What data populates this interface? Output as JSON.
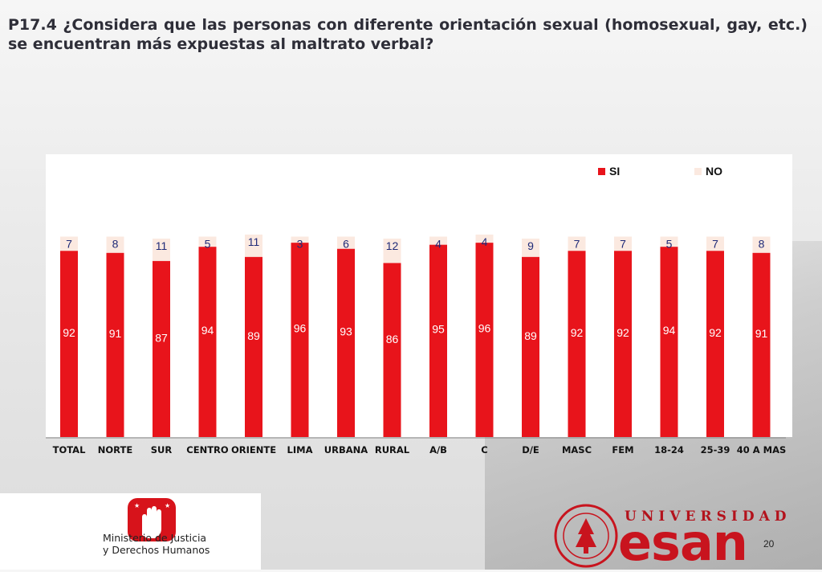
{
  "slide": {
    "title": "P17.4 ¿Considera que las personas con diferente orientación sexual (homosexual, gay, etc.) se encuentran más expuestas al maltrato verbal?",
    "page_number": "20"
  },
  "logos": {
    "ministry_line1": "Ministerio de Justicia",
    "ministry_line2": "y Derechos Humanos",
    "university_word": "UNIVERSIDAD",
    "esan_word": "esan"
  },
  "colors": {
    "si": "#e8141b",
    "no": "#fbe9e0",
    "title": "#2e2e38",
    "label": "#1f2a78",
    "brand": "#c8141e"
  },
  "chart_data": {
    "type": "bar",
    "stacked": true,
    "categories": [
      "TOTAL",
      "NORTE",
      "SUR",
      "CENTRO",
      "ORIENTE",
      "LIMA",
      "URBANA",
      "RURAL",
      "A/B",
      "C",
      "D/E",
      "MASC",
      "FEM",
      "18-24",
      "25-39",
      "40 A MAS"
    ],
    "series": [
      {
        "name": "SI",
        "values": [
          92,
          91,
          87,
          94,
          89,
          96,
          93,
          86,
          95,
          96,
          89,
          92,
          92,
          94,
          92,
          91
        ]
      },
      {
        "name": "NO",
        "values": [
          7,
          8,
          11,
          5,
          11,
          3,
          6,
          12,
          4,
          4,
          9,
          7,
          7,
          5,
          7,
          8
        ]
      }
    ],
    "ylim": [
      0,
      100
    ],
    "legend": "top-right",
    "grid": false
  }
}
